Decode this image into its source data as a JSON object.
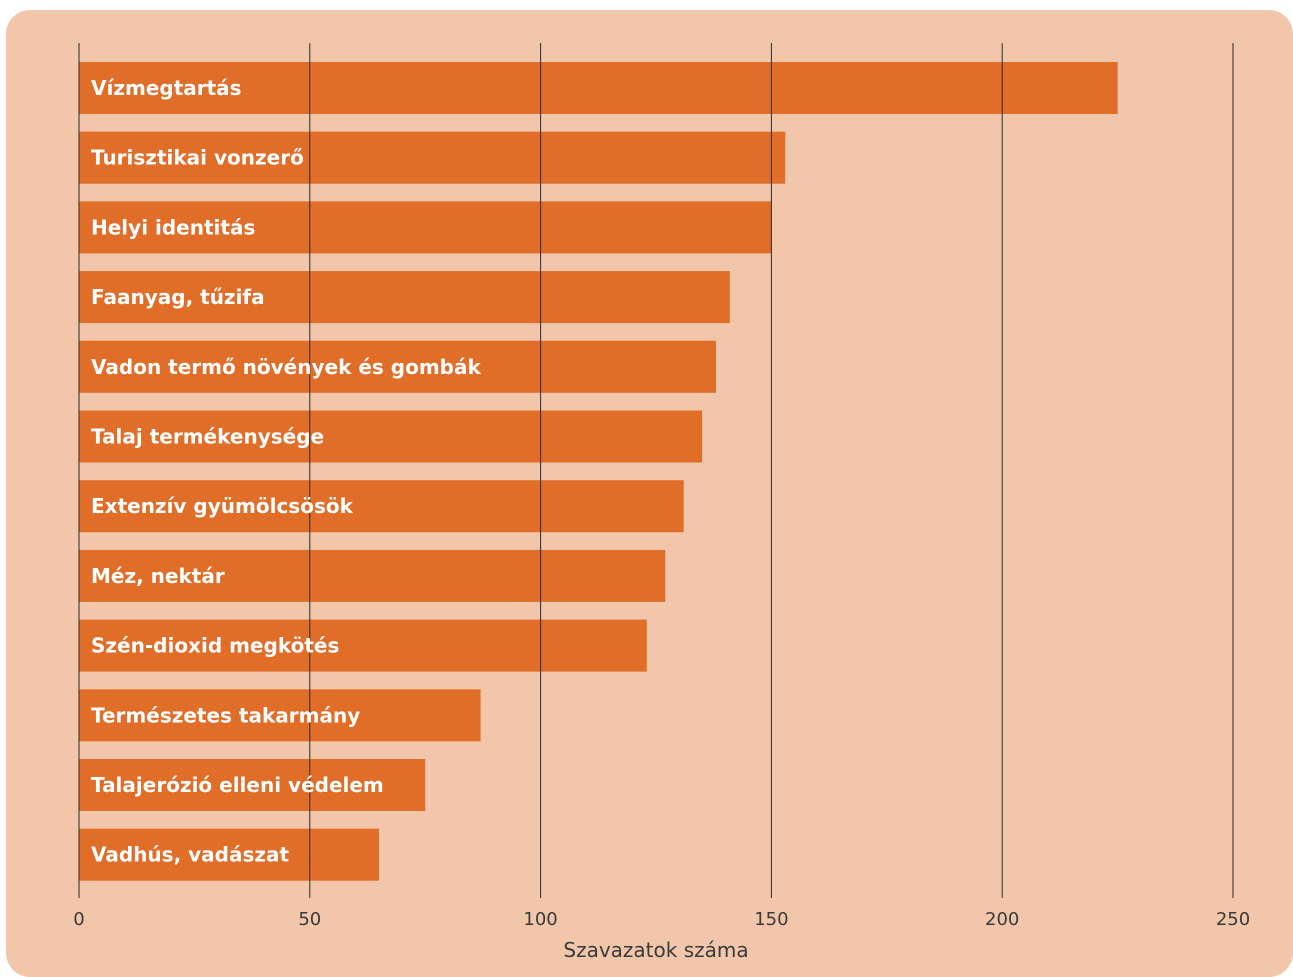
{
  "chart_data": {
    "type": "bar",
    "orientation": "horizontal",
    "title": "",
    "xlabel": "Szavazatok száma",
    "ylabel": "",
    "xlim": [
      0,
      250
    ],
    "x_ticks": [
      0,
      50,
      100,
      150,
      200,
      250
    ],
    "grid": true,
    "legend": "none",
    "categories": [
      "Vízmegtartás",
      "Turisztikai vonzerő",
      "Helyi identitás",
      "Faanyag, tűzifa",
      "Vadon termő növények és gombák",
      "Talaj termékenysége",
      "Extenzív gyümölcsösök",
      "Méz, nektár",
      "Szén-dioxid megkötés",
      "Természetes takarmány",
      "Talajerózió elleni védelem",
      "Vadhús, vadászat"
    ],
    "values": [
      225,
      153,
      150,
      141,
      138,
      135,
      131,
      127,
      123,
      87,
      75,
      65
    ]
  },
  "colors": {
    "background": "#f2c6aa",
    "bar": "#e06d28",
    "gridline": "#2b2b2b",
    "bar_text": "#ffffff",
    "axis_text": "#3a3a3a"
  }
}
